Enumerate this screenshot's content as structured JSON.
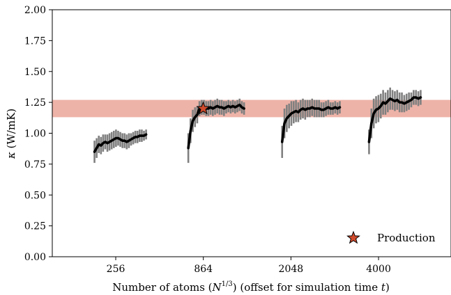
{
  "chart_data": {
    "type": "line",
    "xlabel_parts": [
      "Number of atoms (",
      "N",
      "1/3",
      ") (offset for simulation time ",
      "t",
      ")"
    ],
    "ylabel_parts": [
      "κ",
      " (W/mK)"
    ],
    "ylim": [
      0.0,
      2.0
    ],
    "yticks": [
      "0.00",
      "0.25",
      "0.50",
      "0.75",
      "1.00",
      "1.25",
      "1.50",
      "1.75",
      "2.00"
    ],
    "xticks": [
      {
        "label": "256",
        "x": 256
      },
      {
        "label": "864",
        "x": 864
      },
      {
        "label": "2048",
        "x": 2048
      },
      {
        "label": "4000",
        "x": 4000
      }
    ],
    "band": {
      "low": 1.13,
      "high": 1.27,
      "color": "#eeb3a8"
    },
    "line_color": "#000000",
    "error_color": "#808080",
    "series": [
      {
        "x_start_cuberoot": 5.58,
        "x_end_cuberoot": 7.45,
        "values": [
          0.85,
          0.88,
          0.91,
          0.9,
          0.92,
          0.93,
          0.92,
          0.93,
          0.94,
          0.95,
          0.96,
          0.96,
          0.95,
          0.94,
          0.94,
          0.93,
          0.94,
          0.95,
          0.96,
          0.97,
          0.97,
          0.98,
          0.98,
          0.98,
          0.99
        ],
        "err": [
          0.09,
          0.08,
          0.07,
          0.07,
          0.07,
          0.06,
          0.07,
          0.07,
          0.07,
          0.07,
          0.07,
          0.06,
          0.06,
          0.06,
          0.06,
          0.06,
          0.06,
          0.05,
          0.05,
          0.05,
          0.05,
          0.05,
          0.05,
          0.04,
          0.04
        ]
      },
      {
        "x_start_cuberoot": 8.98,
        "x_end_cuberoot": 11.0,
        "values": [
          0.88,
          1.02,
          1.1,
          1.13,
          1.15,
          1.2,
          1.21,
          1.21,
          1.2,
          1.2,
          1.21,
          1.2,
          1.21,
          1.22,
          1.21,
          1.21,
          1.2,
          1.21,
          1.22,
          1.21,
          1.22,
          1.21,
          1.22,
          1.23,
          1.21,
          1.2
        ],
        "err": [
          0.12,
          0.1,
          0.09,
          0.08,
          0.07,
          0.06,
          0.06,
          0.06,
          0.06,
          0.06,
          0.06,
          0.06,
          0.06,
          0.06,
          0.06,
          0.06,
          0.06,
          0.05,
          0.05,
          0.05,
          0.05,
          0.05,
          0.05,
          0.05,
          0.05,
          0.05
        ]
      },
      {
        "x_start_cuberoot": 12.38,
        "x_end_cuberoot": 14.47,
        "values": [
          0.93,
          1.08,
          1.12,
          1.14,
          1.16,
          1.17,
          1.18,
          1.17,
          1.19,
          1.2,
          1.19,
          1.2,
          1.2,
          1.21,
          1.2,
          1.2,
          1.2,
          1.19,
          1.19,
          1.2,
          1.21,
          1.2,
          1.2,
          1.21,
          1.2,
          1.21
        ],
        "err": [
          0.13,
          0.12,
          0.11,
          0.1,
          0.1,
          0.09,
          0.09,
          0.08,
          0.08,
          0.08,
          0.08,
          0.07,
          0.07,
          0.07,
          0.07,
          0.07,
          0.07,
          0.06,
          0.06,
          0.06,
          0.06,
          0.05,
          0.05,
          0.05,
          0.05,
          0.05
        ]
      },
      {
        "x_start_cuberoot": 15.53,
        "x_end_cuberoot": 17.4,
        "values": [
          0.93,
          1.08,
          1.16,
          1.19,
          1.2,
          1.22,
          1.25,
          1.24,
          1.26,
          1.28,
          1.27,
          1.26,
          1.27,
          1.25,
          1.25,
          1.24,
          1.25,
          1.26,
          1.27,
          1.29,
          1.29,
          1.28,
          1.29
        ],
        "err": [
          0.1,
          0.12,
          0.12,
          0.11,
          0.11,
          0.1,
          0.1,
          0.09,
          0.09,
          0.09,
          0.08,
          0.08,
          0.08,
          0.08,
          0.08,
          0.07,
          0.07,
          0.07,
          0.06,
          0.06,
          0.06,
          0.06,
          0.06
        ]
      }
    ],
    "production_point": {
      "x_cuberoot": 9.52,
      "y": 1.2,
      "color": "#d04a2c"
    },
    "legend": {
      "label": "Production",
      "position": "bottom-right"
    }
  }
}
